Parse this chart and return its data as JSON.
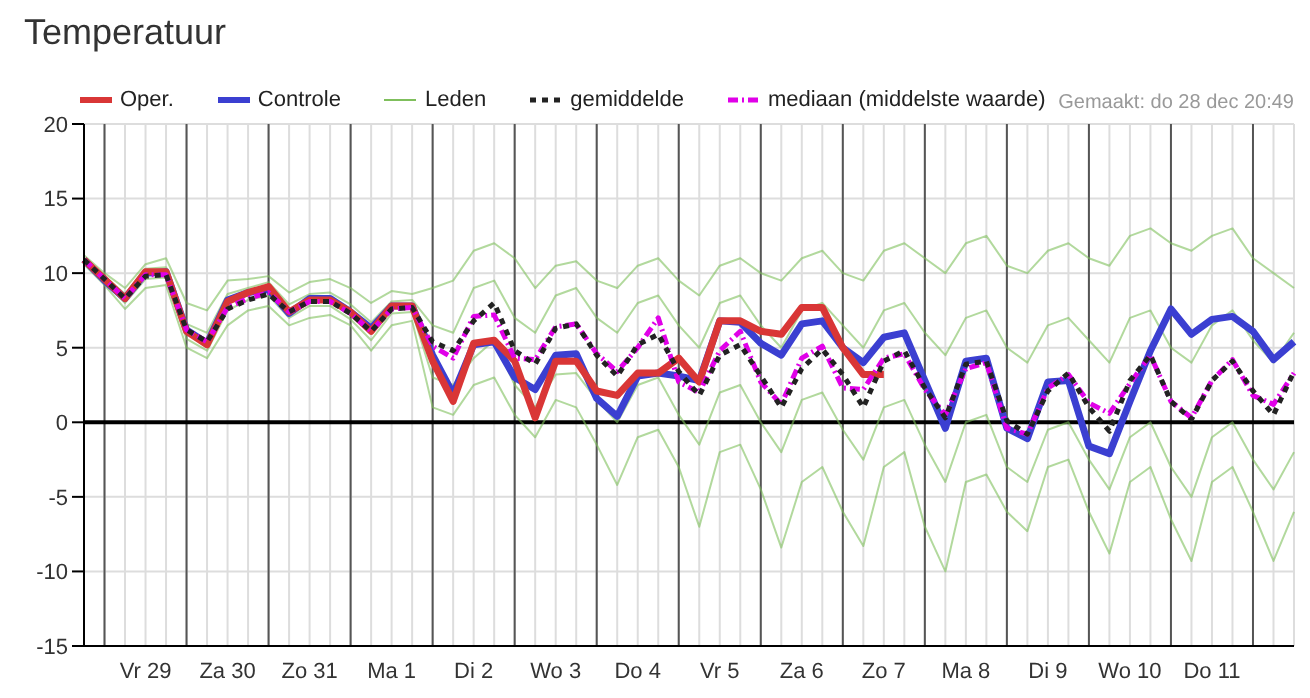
{
  "chart_data": {
    "type": "line",
    "title": "Temperatuur",
    "annotations": [
      "Gemaakt: do 28 dec 20:49"
    ],
    "categories": [
      null,
      null,
      null,
      "Vr 29",
      null,
      null,
      null,
      "Za 30",
      null,
      null,
      null,
      "Zo 31",
      null,
      null,
      null,
      "Ma 1",
      null,
      null,
      null,
      "Di 2",
      null,
      null,
      null,
      "Wo 3",
      null,
      null,
      null,
      "Do 4",
      null,
      null,
      null,
      "Vr 5",
      null,
      null,
      null,
      "Za 6",
      null,
      null,
      null,
      "Zo 7",
      null,
      null,
      null,
      "Ma 8",
      null,
      null,
      null,
      "Di 9",
      null,
      null,
      null,
      "Wo 10",
      null,
      null,
      null,
      "Do 11",
      null,
      null,
      null,
      null
    ],
    "series": [
      {
        "name": "Oper.",
        "color": "#d93636",
        "values": [
          10.9,
          9.6,
          8.3,
          10.1,
          10.1,
          6.1,
          5.2,
          8.1,
          8.7,
          9.1,
          7.4,
          8.2,
          8.2,
          7.4,
          6.1,
          7.8,
          7.8,
          4.1,
          1.4,
          5.3,
          5.5,
          4.1,
          0.3,
          4.1,
          4.1,
          2.1,
          1.8,
          3.3,
          3.3,
          4.3,
          2.7,
          6.8,
          6.8,
          6.1,
          5.9,
          7.7,
          7.7,
          5.0,
          3.2,
          3.2,
          null,
          null,
          null,
          null,
          null,
          null,
          null,
          null,
          null,
          null,
          null,
          null,
          null,
          null,
          null,
          null,
          null,
          null,
          null,
          null
        ]
      },
      {
        "name": "Controle",
        "color": "#3b3fd1",
        "values": [
          10.9,
          9.5,
          8.3,
          10.0,
          10.1,
          6.2,
          5.3,
          8.2,
          8.7,
          8.9,
          7.3,
          8.3,
          8.3,
          7.4,
          6.3,
          7.8,
          7.8,
          4.5,
          1.9,
          5.2,
          5.4,
          3.0,
          2.2,
          4.5,
          4.6,
          1.6,
          0.4,
          3.1,
          3.3,
          3.1,
          2.8,
          6.8,
          6.7,
          5.3,
          4.5,
          6.6,
          6.8,
          5.0,
          4.0,
          5.7,
          6.0,
          2.8,
          -0.4,
          4.1,
          4.3,
          -0.4,
          -1.1,
          2.7,
          2.8,
          -1.6,
          -2.1,
          1.4,
          4.8,
          7.6,
          5.9,
          6.9,
          7.1,
          6.1,
          4.2,
          5.4
        ]
      },
      {
        "name": "Leden",
        "color": "#7fbf5c",
        "values": [
          11.2,
          10,
          9,
          10.6,
          11,
          8,
          7.5,
          9.5,
          9.6,
          9.8,
          8.7,
          9.4,
          9.6,
          9,
          8,
          8.8,
          8.6,
          9,
          9.5,
          11.5,
          12,
          11,
          9,
          10.5,
          10.8,
          9.5,
          9,
          10.5,
          11,
          9.5,
          8.5,
          10.5,
          11,
          10,
          9.5,
          11,
          11.5,
          10,
          9.5,
          11.5,
          12,
          11,
          10,
          12,
          12.5,
          10.5,
          10,
          11.5,
          12,
          11,
          10.5,
          12.5,
          13,
          12,
          11.5,
          12.5,
          13,
          11,
          10,
          9
        ]
      },
      {
        "name": "gemiddelde",
        "color": "#222222",
        "line_style": "dotted",
        "values": [
          10.9,
          9.6,
          8.3,
          9.8,
          9.9,
          6.2,
          5.4,
          7.6,
          8.2,
          8.6,
          7.4,
          8.1,
          8.1,
          7.3,
          6.1,
          7.6,
          7.7,
          5.4,
          4.8,
          6.8,
          8.0,
          4.8,
          3.9,
          6.3,
          6.6,
          4.5,
          3.1,
          5.2,
          5.9,
          3.4,
          1.8,
          4.5,
          5.2,
          3.1,
          1.0,
          3.6,
          4.9,
          3.2,
          1.0,
          4.1,
          4.8,
          2.3,
          0.3,
          3.9,
          4.1,
          0.1,
          -0.8,
          2.1,
          3.3,
          1.0,
          -0.6,
          2.8,
          4.5,
          1.4,
          0.2,
          2.8,
          4.1,
          2.1,
          0.5,
          3.4
        ]
      },
      {
        "name": "mediaan (middelste waarde)",
        "color": "#e000e8",
        "line_style": "dashed",
        "values": [
          10.9,
          9.6,
          8.3,
          9.9,
          9.9,
          6.2,
          5.4,
          7.7,
          8.3,
          8.7,
          7.4,
          8.1,
          8.1,
          7.3,
          6.1,
          7.6,
          7.7,
          5.1,
          4.3,
          7.1,
          7.2,
          4.3,
          4.2,
          6.4,
          6.6,
          4.6,
          3.4,
          5.0,
          7.0,
          2.7,
          2.0,
          4.8,
          6.1,
          2.7,
          1.2,
          4.3,
          5.1,
          2.3,
          2.2,
          4.3,
          4.6,
          2.2,
          0.5,
          3.6,
          4.0,
          -0.4,
          -0.8,
          2.3,
          3.2,
          1.3,
          0.6,
          2.6,
          4.5,
          1.4,
          0.3,
          2.8,
          4.2,
          1.8,
          1.2,
          3.3
        ]
      },
      {
        "color": "#7fbf5c",
        "values": [
          10.6,
          9.2,
          7.6,
          9,
          9.2,
          5,
          4.3,
          6.5,
          7.5,
          7.8,
          6.5,
          7,
          7.2,
          6.5,
          4.8,
          6.5,
          6.8,
          1,
          0.5,
          2.5,
          3,
          0.5,
          -1,
          1.5,
          1,
          -1.5,
          -4.2,
          -1,
          -0.5,
          -3,
          -7,
          -2,
          -1.5,
          -4.5,
          -8.4,
          -4,
          -3,
          -6,
          -8.3,
          -3,
          -2,
          -7,
          -10,
          -4,
          -3.5,
          -6,
          -7.3,
          -3,
          -2.5,
          -6,
          -8.8,
          -4,
          -3,
          -6.5,
          -9.3,
          -4,
          -3,
          -6,
          -9.3,
          -6
        ]
      },
      {
        "color": "#7fbf5c",
        "values": [
          11,
          9.8,
          8.6,
          10.3,
          10.4,
          6.6,
          6,
          8.6,
          9,
          9.4,
          7.9,
          8.6,
          8.7,
          7.9,
          6.7,
          8.1,
          8.2,
          6.5,
          6,
          9,
          9.5,
          7,
          6,
          8.5,
          9,
          7,
          6,
          8,
          8.5,
          6.5,
          5,
          8,
          8.5,
          6.5,
          5,
          7.5,
          8,
          6.5,
          5,
          7.5,
          8,
          6,
          4.5,
          7,
          7.5,
          5,
          4,
          6.5,
          7,
          5.5,
          4,
          7,
          7.5,
          5,
          4,
          6.5,
          7.5,
          5.5,
          4,
          6
        ]
      },
      {
        "color": "#7fbf5c",
        "values": [
          10.8,
          9.4,
          8,
          9.6,
          9.7,
          5.6,
          4.8,
          7.5,
          8.2,
          8.5,
          7,
          7.8,
          7.8,
          6.9,
          5.5,
          7.3,
          7.4,
          3,
          2.5,
          4.3,
          5.5,
          2.5,
          1,
          3.2,
          3.3,
          1.5,
          0,
          2.5,
          3,
          0.5,
          -1.5,
          2,
          2.5,
          0,
          -2,
          1.5,
          2,
          -0.5,
          -2.5,
          1,
          1.5,
          -1.5,
          -4,
          0,
          0.5,
          -3,
          -4,
          -0.5,
          0,
          -2.5,
          -4.5,
          -1,
          0,
          -3,
          -5,
          -1,
          0,
          -2.5,
          -4.5,
          -2
        ]
      }
    ],
    "ylim": [
      -15,
      20
    ],
    "yticks": [
      -15,
      -10,
      -5,
      0,
      5,
      10,
      15,
      20
    ],
    "ref_lines": [
      {
        "axis": "y",
        "value": 0,
        "color": "#000000"
      }
    ],
    "grid": true,
    "legend": "top",
    "marker": "none"
  }
}
